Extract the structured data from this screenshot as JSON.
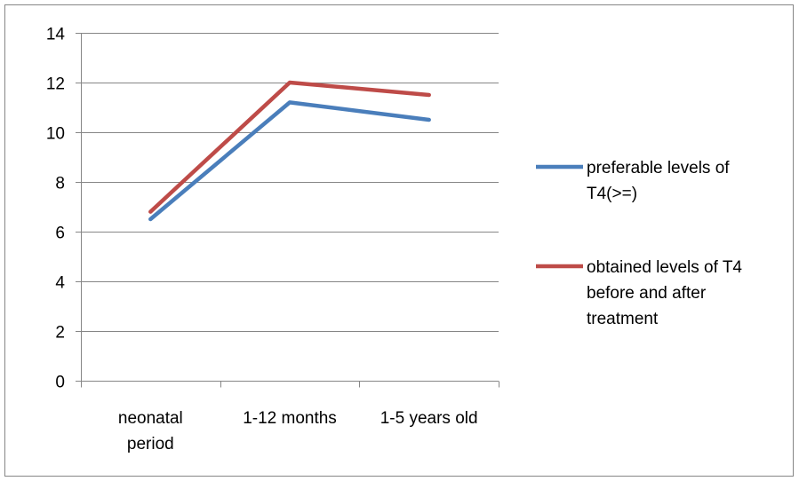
{
  "chart_data": {
    "type": "line",
    "categories": [
      "neonatal period",
      "1-12 months",
      "1-5 years old"
    ],
    "category_lines": [
      [
        "neonatal",
        "period"
      ],
      [
        "1-12 months"
      ],
      [
        "1-5 years old"
      ]
    ],
    "series": [
      {
        "name": "preferable levels of T4(>=)",
        "name_lines": [
          "preferable levels of",
          "T4(>=)"
        ],
        "color": "#4A7EBB",
        "values": [
          6.5,
          11.2,
          10.5
        ]
      },
      {
        "name": "obtained levels of T4 before and after treatment",
        "name_lines": [
          "obtained levels of T4",
          "before and after",
          "treatment"
        ],
        "color": "#BE4B48",
        "values": [
          6.8,
          12.0,
          11.5
        ]
      }
    ],
    "ylim": [
      0,
      14
    ],
    "yticks": [
      "0",
      "2",
      "4",
      "6",
      "8",
      "10",
      "12",
      "14"
    ],
    "grid": "horizontal",
    "legend_position": "right"
  }
}
